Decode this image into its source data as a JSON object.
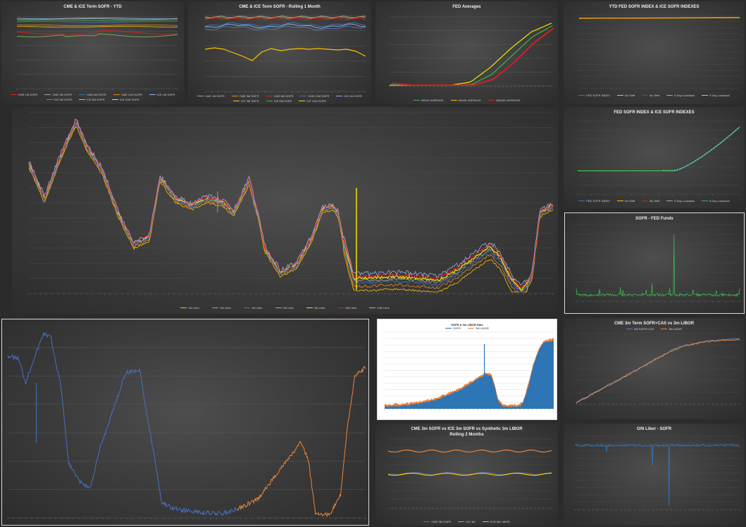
{
  "panels": {
    "p1": {
      "title": "CME & ICE Term SOFR - YTD",
      "legend": [
        "CME 1M SOFR",
        "CME 3M SOFR",
        "CME 6M SOFR",
        "CME 12M SOFR",
        "ICE 1M SOFR",
        "ICE 3M SOFR",
        "ICE 6M SOFR",
        "ICE 12M SOFR"
      ]
    },
    "p2": {
      "title": "CME & ICE Term SOFR - Rolling 1 Month",
      "legend": [
        "CME 1M SOFR",
        "CME 3M SOFR",
        "CME 6M SOFR",
        "CME 12M SOFR",
        "ICE 1M SOFR",
        "ICE 3M SOFR",
        "ICE 6M SOFR",
        "ICE 12M SOFR"
      ]
    },
    "p3": {
      "title": "FED Averages",
      "legend": [
        "30DAY AVERAGE",
        "90DAY AVERAGE",
        "180DAY AVERAGE"
      ]
    },
    "p4": {
      "title": "YTD FED SOFR INDEX & ICE SOFR INDEXES",
      "legend": [
        "FED SOFR INDEX",
        "No Shift",
        "No Shift",
        "5 Day Lookback",
        "5 Day Lookback"
      ]
    },
    "p5": {
      "title": "",
      "legend": [
        "ON Libor",
        "1W Libor",
        "1M Libor",
        "2M Libor",
        "3M Libor",
        "6M Libor",
        "12M Libor"
      ]
    },
    "p6": {
      "title": "FED SOFR INDEX & ICE SOFR INDEXES",
      "legend": [
        "FED SOFR INDEX",
        "No Shift",
        "No Shift",
        "5 Day Lookback",
        "5 Day Lookback"
      ]
    },
    "p7": {
      "title": "SOFR - FED Funds"
    },
    "p8": {
      "title": ""
    },
    "p9": {
      "title": "SOFR & 3m LIBOR Rate",
      "legend": [
        "SOFR",
        "3M LIBOR"
      ]
    },
    "p10": {
      "title": "CME 3m Term SOFR+CAS vs 3m LIBOR",
      "legend": [
        "3M SOFR+CAS",
        "3M LIBOR"
      ]
    },
    "p11": {
      "title": "CME 3m SOFR vs ICE 3m SOFR vs Synthetic 3m LIBOR",
      "title2": "Rolling 2 Months",
      "legend": [
        "CME 3M SOFR",
        "ICE 3M",
        "SYN 3M LIBOR"
      ]
    },
    "p12": {
      "title": "O/N Libor - SOFR"
    }
  },
  "colors": {
    "yellow": "#f2e400",
    "orange": "#e38a1e",
    "blue": "#4472c4",
    "red": "#d42020",
    "green": "#3cb44b",
    "lightblue": "#8fb4e8",
    "grey": "#a5a5a5",
    "gold": "#ffc000"
  },
  "chart_data": [
    {
      "id": "p1",
      "type": "line",
      "title": "CME & ICE Term SOFR - YTD",
      "series": [
        {
          "name": "CME 1M SOFR",
          "values": [
            5.32,
            5.32,
            5.33,
            5.32,
            5.33,
            5.32
          ]
        },
        {
          "name": "CME 3M SOFR",
          "values": [
            5.36,
            5.35,
            5.35,
            5.34,
            5.34,
            5.33
          ]
        },
        {
          "name": "CME 6M SOFR",
          "values": [
            5.25,
            5.22,
            5.2,
            5.22,
            5.24,
            5.18
          ]
        },
        {
          "name": "CME 12M SOFR",
          "values": [
            4.95,
            4.9,
            4.86,
            4.92,
            4.98,
            4.85
          ]
        }
      ]
    },
    {
      "id": "p3",
      "type": "line",
      "title": "FED Averages",
      "series": [
        {
          "name": "30DAY AVERAGE",
          "values": [
            0.05,
            0.05,
            0.05,
            0.05,
            0.3,
            1.5,
            3.0,
            4.3,
            5.0
          ]
        },
        {
          "name": "90DAY AVERAGE",
          "values": [
            0.08,
            0.05,
            0.05,
            0.05,
            0.1,
            0.9,
            2.4,
            3.9,
            4.8
          ]
        },
        {
          "name": "180DAY AVERAGE",
          "values": [
            0.2,
            0.05,
            0.05,
            0.05,
            0.05,
            0.5,
            1.8,
            3.4,
            4.6
          ]
        }
      ]
    },
    {
      "id": "p5",
      "type": "line",
      "series": [
        {
          "name": "ON Libor"
        },
        {
          "name": "1W Libor"
        },
        {
          "name": "1M Libor"
        },
        {
          "name": "2M Libor"
        },
        {
          "name": "3M Libor"
        },
        {
          "name": "6M Libor"
        },
        {
          "name": "12M Libor"
        }
      ]
    },
    {
      "id": "p9",
      "type": "area",
      "title": "SOFR & 3m LIBOR Rate",
      "series": [
        {
          "name": "SOFR"
        },
        {
          "name": "3M LIBOR"
        }
      ]
    },
    {
      "id": "p10",
      "type": "line",
      "title": "CME 3m Term SOFR+CAS vs 3m LIBOR",
      "series": [
        {
          "name": "3M SOFR+CAS"
        },
        {
          "name": "3M LIBOR"
        }
      ]
    },
    {
      "id": "p11",
      "type": "line",
      "title": "CME 3m SOFR vs ICE 3m SOFR vs Synthetic 3m LIBOR",
      "series": [
        {
          "name": "CME 3M SOFR"
        },
        {
          "name": "ICE 3M"
        },
        {
          "name": "SYN 3M LIBOR"
        }
      ]
    }
  ]
}
